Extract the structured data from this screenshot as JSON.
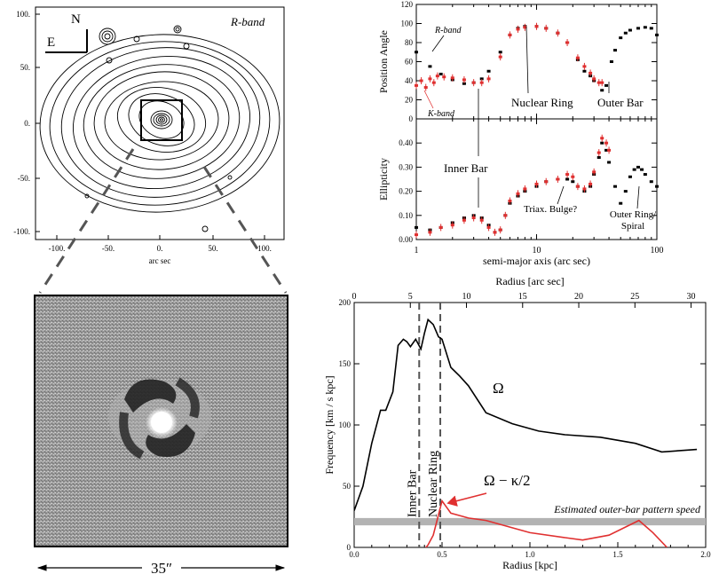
{
  "contour_panel": {
    "band_label": "R-band",
    "north": "N",
    "east": "E",
    "xlabel": "arc sec",
    "x_ticks": [
      "-100.",
      "-50.",
      "0.",
      "50.",
      "100."
    ],
    "y_ticks": [
      "100.",
      "50.",
      "0.",
      "-50.",
      "-100."
    ]
  },
  "image_panel": {
    "scale_label": "35″"
  },
  "chart_data": [
    {
      "type": "scatter",
      "panel": "position-angle",
      "ylabel": "Position Angle",
      "xscale": "log",
      "xlim": [
        1,
        100
      ],
      "ylim": [
        0,
        120
      ],
      "y_ticks": [
        "0",
        "20",
        "40",
        "60",
        "80",
        "100",
        "120"
      ],
      "series": [
        {
          "name": "R-band",
          "color": "#000000",
          "x": [
            1.0,
            1.3,
            1.6,
            2.0,
            2.5,
            3.0,
            3.5,
            4.0,
            5.0,
            6.0,
            7.0,
            8.0,
            10,
            12,
            15,
            18,
            22,
            25,
            28,
            30,
            35,
            38,
            42,
            45,
            50,
            55,
            60,
            70,
            80,
            90,
            100
          ],
          "y": [
            70,
            55,
            47,
            41,
            37,
            38,
            42,
            50,
            70,
            88,
            95,
            97,
            97,
            95,
            90,
            80,
            62,
            50,
            45,
            40,
            30,
            35,
            60,
            72,
            85,
            90,
            93,
            95,
            96,
            95,
            88
          ]
        },
        {
          "name": "K-band",
          "color": "#e03030",
          "x": [
            1.0,
            1.1,
            1.2,
            1.3,
            1.4,
            1.5,
            1.7,
            2.0,
            2.5,
            3.0,
            3.5,
            4.0,
            5.0,
            6.0,
            7.0,
            8.0,
            10,
            12,
            15,
            18,
            22,
            25,
            28,
            30,
            33,
            35
          ],
          "y": [
            35,
            40,
            33,
            42,
            38,
            45,
            44,
            43,
            41,
            38,
            38,
            42,
            65,
            88,
            94,
            96,
            97,
            95,
            90,
            80,
            64,
            55,
            48,
            42,
            38,
            38
          ]
        }
      ],
      "annotations": [
        "R-band",
        "K-band",
        "Nuclear Ring",
        "Outer Bar"
      ]
    },
    {
      "type": "scatter",
      "panel": "ellipticity",
      "ylabel": "Ellipticity",
      "xlabel": "semi-major axis (arc sec)",
      "xscale": "log",
      "xlim": [
        1,
        100
      ],
      "ylim": [
        0,
        0.5
      ],
      "x_ticks": [
        "1",
        "10",
        "100"
      ],
      "y_ticks": [
        "0.00",
        "0.10",
        "0.20",
        "0.30",
        "0.40"
      ],
      "series": [
        {
          "name": "R-band",
          "color": "#000000",
          "x": [
            1.0,
            1.3,
            1.6,
            2.0,
            2.5,
            3.0,
            3.5,
            4.0,
            4.5,
            5.0,
            5.5,
            6.0,
            7.0,
            8.0,
            10,
            12,
            15,
            18,
            20,
            22,
            25,
            28,
            30,
            33,
            35,
            38,
            40,
            45,
            50,
            55,
            60,
            65,
            70,
            75,
            80,
            90,
            100
          ],
          "y": [
            0.05,
            0.04,
            0.05,
            0.07,
            0.09,
            0.1,
            0.09,
            0.06,
            0.03,
            0.04,
            0.1,
            0.15,
            0.18,
            0.2,
            0.22,
            0.24,
            0.25,
            0.25,
            0.24,
            0.22,
            0.2,
            0.22,
            0.27,
            0.34,
            0.4,
            0.37,
            0.32,
            0.22,
            0.15,
            0.2,
            0.26,
            0.29,
            0.3,
            0.29,
            0.27,
            0.24,
            0.22
          ]
        },
        {
          "name": "K-band",
          "color": "#e03030",
          "x": [
            1.0,
            1.3,
            1.6,
            2.0,
            2.5,
            3.0,
            3.5,
            4.0,
            4.5,
            5.0,
            5.5,
            6.0,
            7.0,
            8.0,
            10,
            12,
            15,
            18,
            20,
            22,
            25,
            28,
            30,
            33,
            35,
            38,
            40
          ],
          "y": [
            0.02,
            0.03,
            0.05,
            0.06,
            0.08,
            0.09,
            0.08,
            0.05,
            0.03,
            0.04,
            0.1,
            0.16,
            0.19,
            0.21,
            0.23,
            0.24,
            0.25,
            0.27,
            0.26,
            0.22,
            0.21,
            0.23,
            0.28,
            0.36,
            0.42,
            0.4,
            0.37
          ]
        }
      ],
      "annotations": [
        "Inner Bar",
        "Triax. Bulge?",
        "Outer Ring/\nSpiral"
      ]
    },
    {
      "type": "line",
      "panel": "frequency",
      "xlabel": "Radius [kpc]",
      "x2label": "Radius [arc sec]",
      "ylabel": "Frequency [km / s kpc]",
      "xlim": [
        0,
        2.0
      ],
      "x2lim": [
        0,
        31.3
      ],
      "ylim": [
        0,
        200
      ],
      "x_ticks": [
        "0.0",
        "0.5",
        "1.0",
        "1.5",
        "2.0"
      ],
      "x2_ticks": [
        "0",
        "5",
        "10",
        "15",
        "20",
        "25",
        "30"
      ],
      "y_ticks": [
        "0",
        "50",
        "100",
        "150",
        "200"
      ],
      "series": [
        {
          "name": "Ω",
          "color": "#000000",
          "x": [
            0.0,
            0.05,
            0.1,
            0.15,
            0.18,
            0.22,
            0.25,
            0.28,
            0.3,
            0.32,
            0.35,
            0.38,
            0.4,
            0.42,
            0.45,
            0.48,
            0.5,
            0.55,
            0.6,
            0.65,
            0.75,
            0.9,
            1.05,
            1.2,
            1.4,
            1.6,
            1.75,
            1.95
          ],
          "y": [
            30,
            50,
            85,
            112,
            112,
            127,
            165,
            170,
            168,
            164,
            170,
            162,
            175,
            186,
            182,
            172,
            170,
            147,
            140,
            132,
            110,
            101,
            95,
            92,
            90,
            85,
            78,
            80
          ]
        },
        {
          "name": "Ω − κ/2",
          "color": "#e03030",
          "x": [
            0.38,
            0.42,
            0.45,
            0.5,
            0.53,
            0.55,
            0.6,
            0.65,
            0.75,
            0.9,
            1.0,
            1.2,
            1.3,
            1.45,
            1.62,
            1.7,
            1.78
          ],
          "y": [
            -5,
            2,
            10,
            38,
            32,
            28,
            26,
            24,
            22,
            16,
            12,
            8,
            6,
            10,
            22,
            12,
            0
          ]
        }
      ],
      "band": {
        "value": 21,
        "label": "Estimated outer-bar pattern speed"
      },
      "vlines": [
        {
          "x": 0.37,
          "label": "Inner Bar"
        },
        {
          "x": 0.49,
          "label": "Nuclear Ring"
        }
      ],
      "annotations": [
        "Ω",
        "Ω − κ/2"
      ]
    }
  ]
}
